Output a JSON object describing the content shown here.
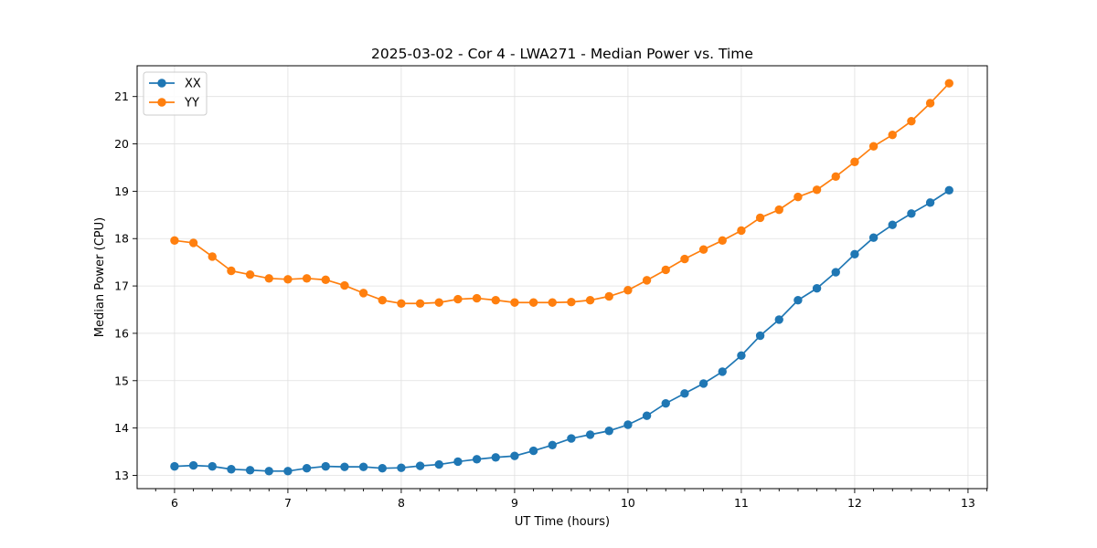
{
  "chart_data": {
    "type": "line",
    "title": "2025-03-02 - Cor 4 - LWA271 - Median Power vs. Time",
    "xlabel": "UT Time (hours)",
    "ylabel": "Median Power (CPU)",
    "xlim": [
      5.67,
      13.17
    ],
    "ylim": [
      12.72,
      21.65
    ],
    "xticks": [
      6,
      7,
      8,
      9,
      10,
      11,
      12,
      13
    ],
    "xticks_minor_step": 0.16667,
    "yticks": [
      13,
      14,
      15,
      16,
      17,
      18,
      19,
      20,
      21
    ],
    "grid": true,
    "legend": "top-left",
    "x": [
      6.0,
      6.1667,
      6.3333,
      6.5,
      6.6667,
      6.8333,
      7.0,
      7.1667,
      7.3333,
      7.5,
      7.6667,
      7.8333,
      8.0,
      8.1667,
      8.3333,
      8.5,
      8.6667,
      8.8333,
      9.0,
      9.1667,
      9.3333,
      9.5,
      9.6667,
      9.8333,
      10.0,
      10.1667,
      10.3333,
      10.5,
      10.6667,
      10.8333,
      11.0,
      11.1667,
      11.3333,
      11.5,
      11.6667,
      11.8333,
      12.0,
      12.1667,
      12.3333,
      12.5,
      12.6667,
      12.8333
    ],
    "series": [
      {
        "name": "XX",
        "color": "#1f77b4",
        "values": [
          13.19,
          13.21,
          13.19,
          13.13,
          13.11,
          13.09,
          13.09,
          13.15,
          13.19,
          13.18,
          13.18,
          13.15,
          13.16,
          13.2,
          13.23,
          13.29,
          13.34,
          13.38,
          13.41,
          13.52,
          13.64,
          13.78,
          13.86,
          13.94,
          14.07,
          14.26,
          14.52,
          14.73,
          14.94,
          15.19,
          15.53,
          15.95,
          16.29,
          16.7,
          16.95,
          17.29,
          17.67,
          18.02,
          18.29,
          18.53,
          18.76,
          19.02
        ]
      },
      {
        "name": "YY",
        "color": "#ff7f0e",
        "values": [
          17.96,
          17.91,
          17.62,
          17.32,
          17.24,
          17.16,
          17.14,
          17.16,
          17.13,
          17.01,
          16.85,
          16.7,
          16.63,
          16.63,
          16.65,
          16.72,
          16.74,
          16.7,
          16.65,
          16.65,
          16.65,
          16.66,
          16.7,
          16.78,
          16.91,
          17.12,
          17.34,
          17.57,
          17.77,
          17.96,
          18.17,
          18.44,
          18.61,
          18.88,
          19.03,
          19.31,
          19.62,
          19.95,
          20.19,
          20.48,
          20.86,
          21.28
        ]
      }
    ]
  }
}
